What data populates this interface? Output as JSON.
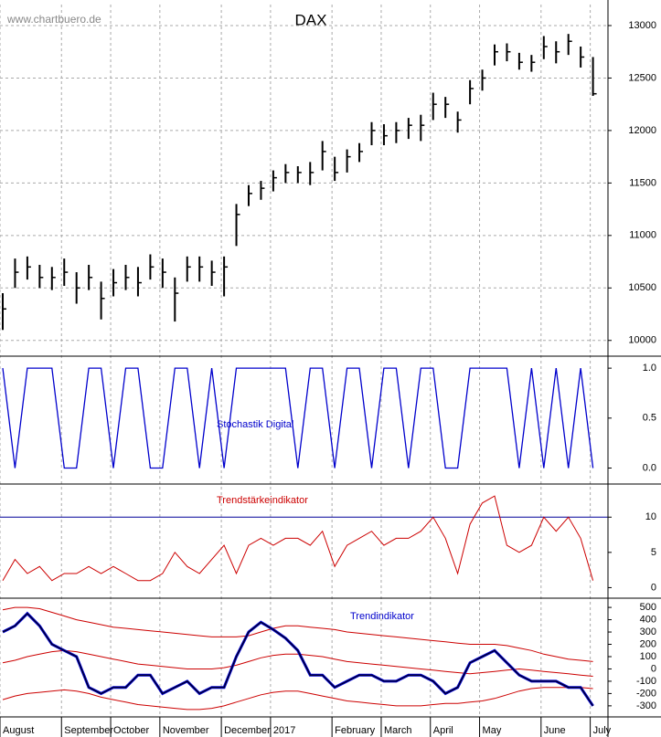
{
  "chart_data": [
    {
      "type": "ohlc",
      "title": "DAX",
      "watermark": "www.chartbuero.de",
      "color": "#000000",
      "high": [
        10450,
        10780,
        10800,
        10720,
        10700,
        10780,
        10650,
        10720,
        10560,
        10680,
        10720,
        10700,
        10820,
        10780,
        10600,
        10800,
        10800,
        10760,
        10800,
        11300,
        11480,
        11520,
        11620,
        11680,
        11660,
        11700,
        11900,
        11750,
        11820,
        11880,
        12080,
        12060,
        12080,
        12120,
        12150,
        12360,
        12320,
        12180,
        12480,
        12580,
        12820,
        12830,
        12740,
        12720,
        12900,
        12850,
        12920,
        12800,
        12700
      ],
      "low": [
        10100,
        10500,
        10580,
        10500,
        10480,
        10520,
        10350,
        10480,
        10200,
        10420,
        10480,
        10420,
        10580,
        10500,
        10180,
        10560,
        10560,
        10520,
        10420,
        10900,
        11280,
        11340,
        11420,
        11500,
        11500,
        11480,
        11620,
        11520,
        11600,
        11700,
        11860,
        11860,
        11880,
        11920,
        11900,
        12100,
        12120,
        11980,
        12250,
        12380,
        12620,
        12660,
        12580,
        12560,
        12680,
        12640,
        12720,
        12600,
        12330
      ],
      "close": [
        10300,
        10650,
        10700,
        10600,
        10600,
        10650,
        10500,
        10600,
        10400,
        10550,
        10600,
        10550,
        10700,
        10650,
        10450,
        10700,
        10700,
        10650,
        10700,
        11200,
        11400,
        11450,
        11550,
        11600,
        11600,
        11600,
        11800,
        11600,
        11750,
        11800,
        12000,
        11950,
        12000,
        12050,
        12050,
        12250,
        12250,
        12100,
        12400,
        12500,
        12750,
        12750,
        12650,
        12650,
        12800,
        12750,
        12850,
        12700,
        12350
      ],
      "ylim": [
        9850,
        13200
      ],
      "yticks": [
        10000,
        10500,
        11000,
        11500,
        12000,
        12500,
        13000
      ],
      "grid": true
    },
    {
      "type": "step",
      "title": "Stochastik Digital",
      "color": "#0000cc",
      "values": [
        1,
        0,
        1,
        1,
        1,
        0,
        0,
        1,
        1,
        0,
        1,
        1,
        0,
        0,
        1,
        1,
        0,
        1,
        0,
        1,
        1,
        1,
        1,
        1,
        0,
        1,
        1,
        0,
        1,
        1,
        0,
        1,
        1,
        0,
        1,
        1,
        0,
        0,
        1,
        1,
        1,
        1,
        0,
        1,
        0,
        1,
        0,
        1,
        0
      ],
      "ylim": [
        -0.16,
        1.12
      ],
      "yticks": [
        {
          "value": 1,
          "label": "1.0"
        },
        {
          "value": 0.5,
          "label": "0.5"
        },
        {
          "value": 0,
          "label": "0.0"
        }
      ]
    },
    {
      "type": "line",
      "title": "Trendstärkeindikator",
      "color": "#cc0000",
      "reference_line": 10,
      "reference_color": "#000099",
      "values": [
        1,
        4,
        2,
        3,
        1,
        2,
        2,
        3,
        2,
        3,
        2,
        1,
        1,
        2,
        5,
        3,
        2,
        4,
        6,
        2,
        6,
        7,
        6,
        7,
        7,
        6,
        8,
        3,
        6,
        7,
        8,
        6,
        7,
        7,
        8,
        10,
        7,
        2,
        9,
        12,
        13,
        6,
        5,
        6,
        10,
        8,
        10,
        7,
        1
      ],
      "ylim": [
        -1.5,
        14.7
      ],
      "yticks": [
        10,
        5,
        0
      ]
    },
    {
      "type": "multi-line",
      "title": "Trendindikator",
      "categories": [
        "August",
        null,
        null,
        null,
        null,
        "September",
        null,
        null,
        null,
        "October",
        null,
        null,
        null,
        "November",
        null,
        null,
        null,
        null,
        "December",
        null,
        null,
        null,
        "2017",
        null,
        null,
        null,
        null,
        "February",
        null,
        null,
        null,
        "March",
        null,
        null,
        null,
        "April",
        null,
        null,
        null,
        "May",
        null,
        null,
        null,
        null,
        "June",
        null,
        null,
        null,
        "July"
      ],
      "series": [
        {
          "color": "#cc0000",
          "values": [
            480,
            500,
            500,
            490,
            460,
            430,
            400,
            380,
            360,
            340,
            330,
            320,
            310,
            300,
            290,
            280,
            270,
            260,
            260,
            260,
            270,
            300,
            330,
            350,
            350,
            340,
            330,
            320,
            300,
            290,
            280,
            270,
            260,
            250,
            240,
            230,
            220,
            210,
            200,
            200,
            200,
            190,
            170,
            150,
            120,
            100,
            80,
            70,
            60
          ]
        },
        {
          "color": "#cc0000",
          "values": [
            50,
            70,
            100,
            120,
            140,
            150,
            140,
            120,
            100,
            80,
            60,
            40,
            30,
            20,
            10,
            0,
            0,
            0,
            10,
            30,
            60,
            90,
            110,
            120,
            120,
            110,
            100,
            80,
            60,
            50,
            40,
            30,
            20,
            10,
            0,
            -10,
            -20,
            -30,
            -40,
            -30,
            -20,
            -10,
            0,
            -10,
            -20,
            -30,
            -40,
            -50,
            -60
          ]
        },
        {
          "color": "#cc0000",
          "values": [
            -250,
            -220,
            -200,
            -190,
            -180,
            -170,
            -180,
            -200,
            -230,
            -250,
            -270,
            -290,
            -300,
            -310,
            -320,
            -330,
            -330,
            -320,
            -300,
            -270,
            -240,
            -210,
            -190,
            -180,
            -180,
            -200,
            -220,
            -240,
            -260,
            -270,
            -280,
            -290,
            -300,
            -300,
            -300,
            -290,
            -280,
            -280,
            -270,
            -260,
            -240,
            -210,
            -180,
            -160,
            -150,
            -150,
            -150,
            -150,
            -160
          ]
        },
        {
          "color": "#0000cc",
          "values": [
            300,
            350,
            450,
            350,
            200,
            150,
            100,
            -150,
            -200,
            -150,
            -150,
            -50,
            -50,
            -200,
            -150,
            -100,
            -200,
            -150,
            -150,
            100,
            300,
            380,
            320,
            250,
            150,
            -50,
            -50,
            -150,
            -100,
            -50,
            -50,
            -100,
            -100,
            -50,
            -50,
            -100,
            -200,
            -150,
            50,
            100,
            150,
            50,
            -50,
            -100,
            -100,
            -100,
            -150,
            -150,
            -300
          ]
        }
      ],
      "ylim": [
        -390,
        575
      ],
      "yticks": [
        500,
        400,
        300,
        200,
        100,
        0,
        -100,
        -200,
        -300
      ]
    }
  ]
}
